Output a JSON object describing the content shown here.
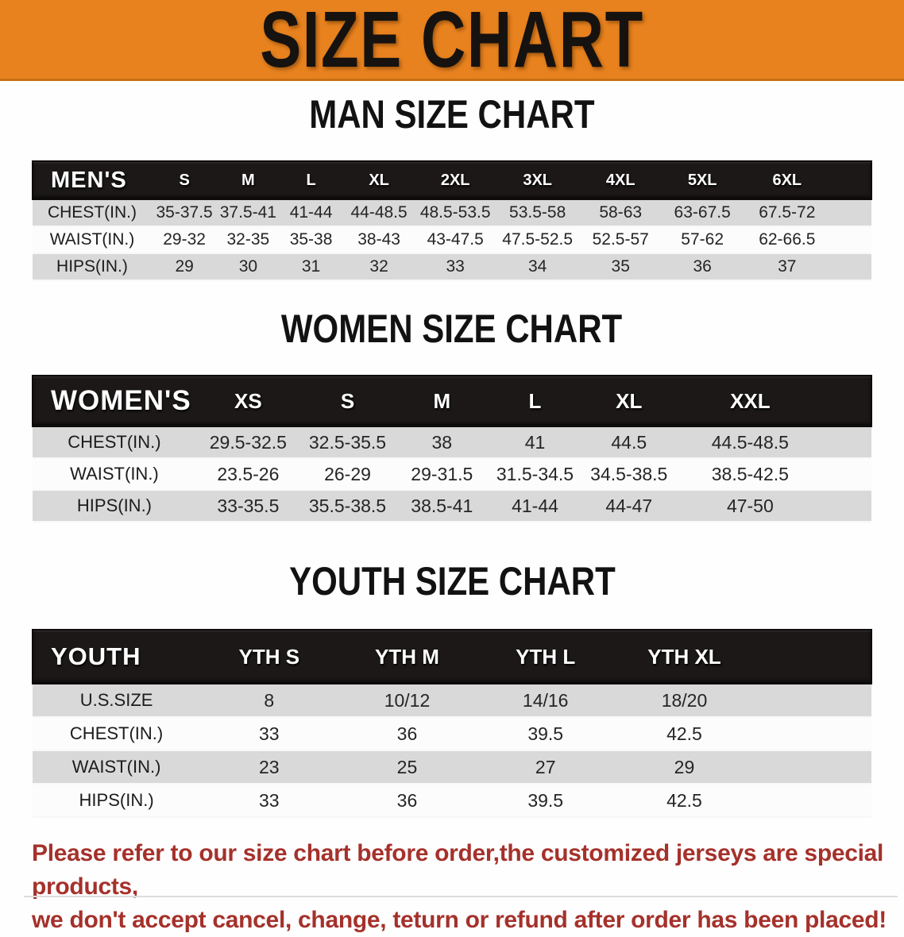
{
  "banner": {
    "title": "SIZE CHART"
  },
  "colors": {
    "banner_orange": "#e8821e",
    "table_header_black": "#1b1817",
    "row_stripe_gray": "#d9d9d9",
    "footer_red": "#a5312b"
  },
  "sections": [
    {
      "id": "men",
      "title": "MAN SIZE CHART",
      "header_label": "MEN'S",
      "columns": [
        "S",
        "M",
        "L",
        "XL",
        "2XL",
        "3XL",
        "4XL",
        "5XL",
        "6XL"
      ],
      "rows": [
        {
          "label": "CHEST(IN.)",
          "values": [
            "35-37.5",
            "37.5-41",
            "41-44",
            "44-48.5",
            "48.5-53.5",
            "53.5-58",
            "58-63",
            "63-67.5",
            "67.5-72"
          ]
        },
        {
          "label": "WAIST(IN.)",
          "values": [
            "29-32",
            "32-35",
            "35-38",
            "38-43",
            "43-47.5",
            "47.5-52.5",
            "52.5-57",
            "57-62",
            "62-66.5"
          ]
        },
        {
          "label": "HIPS(IN.)",
          "values": [
            "29",
            "30",
            "31",
            "32",
            "33",
            "34",
            "35",
            "36",
            "37"
          ]
        }
      ]
    },
    {
      "id": "women",
      "title": "WOMEN SIZE CHART",
      "header_label": "WOMEN'S",
      "columns": [
        "XS",
        "S",
        "M",
        "L",
        "XL",
        "XXL"
      ],
      "rows": [
        {
          "label": "CHEST(IN.)",
          "values": [
            "29.5-32.5",
            "32.5-35.5",
            "38",
            "41",
            "44.5",
            "44.5-48.5"
          ]
        },
        {
          "label": "WAIST(IN.)",
          "values": [
            "23.5-26",
            "26-29",
            "29-31.5",
            "31.5-34.5",
            "34.5-38.5",
            "38.5-42.5"
          ]
        },
        {
          "label": "HIPS(IN.)",
          "values": [
            "33-35.5",
            "35.5-38.5",
            "38.5-41",
            "41-44",
            "44-47",
            "47-50"
          ]
        }
      ]
    },
    {
      "id": "youth",
      "title": "YOUTH SIZE CHART",
      "header_label": "YOUTH",
      "columns": [
        "YTH S",
        "YTH M",
        "YTH L",
        "YTH XL"
      ],
      "rows": [
        {
          "label": "U.S.SIZE",
          "values": [
            "8",
            "10/12",
            "14/16",
            "18/20"
          ]
        },
        {
          "label": "CHEST(IN.)",
          "values": [
            "33",
            "36",
            "39.5",
            "42.5"
          ]
        },
        {
          "label": "WAIST(IN.)",
          "values": [
            "23",
            "25",
            "27",
            "29"
          ]
        },
        {
          "label": "HIPS(IN.)",
          "values": [
            "33",
            "36",
            "39.5",
            "42.5"
          ]
        }
      ]
    }
  ],
  "footer": {
    "line1": "Please refer to our size chart before order,the customized jerseys are special products,",
    "line2": "we don't accept cancel, change, teturn or refund after order has been placed!"
  },
  "chart_data": [
    {
      "type": "table",
      "title": "MAN SIZE CHART",
      "header": [
        "MEN'S",
        "S",
        "M",
        "L",
        "XL",
        "2XL",
        "3XL",
        "4XL",
        "5XL",
        "6XL"
      ],
      "rows": [
        [
          "CHEST(IN.)",
          "35-37.5",
          "37.5-41",
          "41-44",
          "44-48.5",
          "48.5-53.5",
          "53.5-58",
          "58-63",
          "63-67.5",
          "67.5-72"
        ],
        [
          "WAIST(IN.)",
          "29-32",
          "32-35",
          "35-38",
          "38-43",
          "43-47.5",
          "47.5-52.5",
          "52.5-57",
          "57-62",
          "62-66.5"
        ],
        [
          "HIPS(IN.)",
          "29",
          "30",
          "31",
          "32",
          "33",
          "34",
          "35",
          "36",
          "37"
        ]
      ]
    },
    {
      "type": "table",
      "title": "WOMEN SIZE CHART",
      "header": [
        "WOMEN'S",
        "XS",
        "S",
        "M",
        "L",
        "XL",
        "XXL"
      ],
      "rows": [
        [
          "CHEST(IN.)",
          "29.5-32.5",
          "32.5-35.5",
          "38",
          "41",
          "44.5",
          "44.5-48.5"
        ],
        [
          "WAIST(IN.)",
          "23.5-26",
          "26-29",
          "29-31.5",
          "31.5-34.5",
          "34.5-38.5",
          "38.5-42.5"
        ],
        [
          "HIPS(IN.)",
          "33-35.5",
          "35.5-38.5",
          "38.5-41",
          "41-44",
          "44-47",
          "47-50"
        ]
      ]
    },
    {
      "type": "table",
      "title": "YOUTH SIZE CHART",
      "header": [
        "YOUTH",
        "YTH S",
        "YTH M",
        "YTH L",
        "YTH XL"
      ],
      "rows": [
        [
          "U.S.SIZE",
          "8",
          "10/12",
          "14/16",
          "18/20"
        ],
        [
          "CHEST(IN.)",
          "33",
          "36",
          "39.5",
          "42.5"
        ],
        [
          "WAIST(IN.)",
          "23",
          "25",
          "27",
          "29"
        ],
        [
          "HIPS(IN.)",
          "33",
          "36",
          "39.5",
          "42.5"
        ]
      ]
    }
  ]
}
